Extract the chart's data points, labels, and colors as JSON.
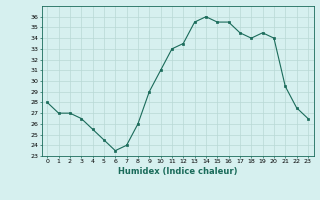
{
  "x": [
    0,
    1,
    2,
    3,
    4,
    5,
    6,
    7,
    8,
    9,
    10,
    11,
    12,
    13,
    14,
    15,
    16,
    17,
    18,
    19,
    20,
    21,
    22,
    23
  ],
  "y": [
    28,
    27,
    27,
    26.5,
    25.5,
    24.5,
    23.5,
    24,
    26,
    29,
    31,
    33,
    33.5,
    35.5,
    36,
    35.5,
    35.5,
    34.5,
    34,
    34.5,
    34,
    29.5,
    27.5,
    26.5
  ],
  "line_color": "#1a6b5a",
  "marker_color": "#1a6b5a",
  "bg_color": "#d6f0ef",
  "grid_color": "#b8d8d5",
  "xlabel": "Humidex (Indice chaleur)",
  "xlim": [
    -0.5,
    23.5
  ],
  "ylim": [
    23,
    37
  ],
  "yticks": [
    23,
    24,
    25,
    26,
    27,
    28,
    29,
    30,
    31,
    32,
    33,
    34,
    35,
    36
  ],
  "xticks": [
    0,
    1,
    2,
    3,
    4,
    5,
    6,
    7,
    8,
    9,
    10,
    11,
    12,
    13,
    14,
    15,
    16,
    17,
    18,
    19,
    20,
    21,
    22,
    23
  ]
}
